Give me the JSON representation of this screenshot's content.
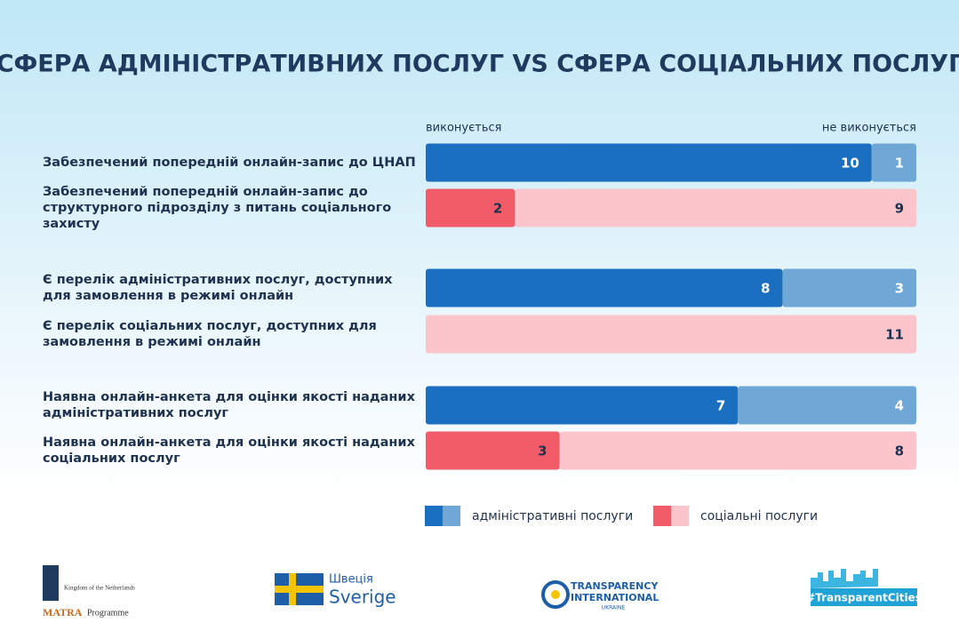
{
  "chart_data": {
    "type": "bar",
    "orientation": "horizontal",
    "stacked": true,
    "title": "СФЕРА АДМІНІСТРАТИВНИХ ПОСЛУГ VS СФЕРА СОЦІАЛЬНИХ ПОСЛУГ",
    "categories": [
      "Забезпечений попередній онлайн-запис до ЦНАП",
      "Забезпечений попередній онлайн-запис до структурного підрозділу з питань соціального захисту",
      "Є перелік адміністративних послуг, доступних для замовлення в режимі онлайн",
      "Є перелік соціальних послуг, доступних для замовлення в режимі онлайн",
      "Наявна онлайн-анкета для оцінки якості наданих адміністративних послуг",
      "Наявна онлайн-анкета для оцінки якості наданих соціальних послуг"
    ],
    "series": [
      {
        "name": "виконується",
        "values": [
          10,
          2,
          8,
          0,
          7,
          3
        ]
      },
      {
        "name": "не виконується",
        "values": [
          1,
          9,
          3,
          11,
          4,
          8
        ]
      }
    ],
    "legend": [
      {
        "label": "адміністративні послуги",
        "colors": [
          "#1a6fc0",
          "#6fa8d6"
        ],
        "text_color": "#ffffff"
      },
      {
        "label": "соціальні послуги",
        "colors": [
          "#f25c69",
          "#fbc5cb"
        ],
        "text_color": "#1e3250"
      }
    ],
    "row_legend": [
      0,
      1,
      0,
      1,
      0,
      1
    ],
    "xlim": [
      0,
      11
    ]
  },
  "footer": {
    "logos": [
      "Kingdom of the Netherlands",
      "MATRA",
      "Programme",
      "Швеція",
      "Sverige",
      "TRANSPARENCY",
      "INTERNATIONAL",
      "UKRAINE",
      "#TransparentCities"
    ]
  }
}
